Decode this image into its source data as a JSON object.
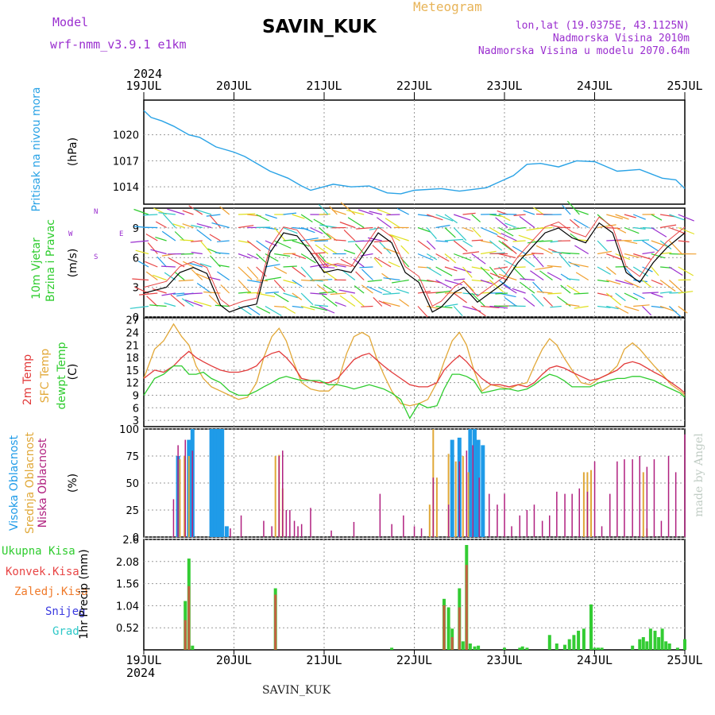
{
  "header": {
    "model_label": "Model",
    "model_name": "wrf-nmm_v3.9.1 e1km",
    "station": "SAVIN_KUK",
    "product": "Meteogram",
    "lonlat": "lon,lat (19.0375E, 43.1125N)",
    "elevation": "Nadmorska Visina 2010m",
    "model_elevation": "Nadmorska Visina u modelu 2070.64m",
    "year": "2024",
    "footer_station": "SAVIN_KUK",
    "credit": "made by Angel"
  },
  "colors": {
    "pressure": "#2aa3e6",
    "temp2m": "#e23a3a",
    "sfc_temp": "#e2a838",
    "dewpt": "#2ecc2e",
    "high_cloud": "#1f9be8",
    "mid_cloud": "#e0a838",
    "low_cloud": "#b0207f",
    "total_precip": "#33cc33",
    "conv_precip": "#e84545",
    "frz_precip": "#f07a2a",
    "snow": "#3a3ae0",
    "hail": "#2ec8c8",
    "wind_axis_label": "#9a2ecf",
    "grid": "#9a9a9a"
  },
  "panels": {
    "pressure": {
      "labels": [
        "Pritisak na nivou mora",
        "(hPa)"
      ]
    },
    "wind": {
      "labels": [
        "10m Vjetar",
        "Brzina i Pravac",
        "(m/s)"
      ],
      "compass": [
        "N",
        "W",
        "E",
        "S"
      ]
    },
    "temp": {
      "labels": [
        "2m Temp",
        "SFC Temp",
        "dewpt Temp",
        "(C)"
      ]
    },
    "cloud": {
      "labels": [
        "Visoka Oblacnost",
        "Srednja Oblacnost",
        "Niska Oblacnost",
        "(%)"
      ]
    },
    "precip": {
      "labels": [
        "Ukupna Kisa",
        "Konvek.Kisa",
        "Zaledj.Kisa",
        "Snijeg",
        "Grad"
      ],
      "ylabel": "1hr Precip (mm)"
    }
  },
  "chart_data": {
    "type": "line",
    "x_axis": {
      "start": "2024-07-19",
      "end": "2024-07-25",
      "tick_labels": [
        "19JUL",
        "20JUL",
        "21JUL",
        "22JUL",
        "23JUL",
        "24JUL",
        "25JUL"
      ]
    },
    "pressure": {
      "ylabel": "(hPa)",
      "ylim": [
        1012,
        1024
      ],
      "yticks": [
        1014,
        1017,
        1020
      ],
      "x_days": [
        0,
        0.08,
        0.2,
        0.33,
        0.5,
        0.62,
        0.8,
        1.0,
        1.12,
        1.4,
        1.6,
        1.75,
        1.85,
        2.1,
        2.3,
        2.5,
        2.7,
        2.85,
        3.0,
        3.3,
        3.5,
        3.8,
        3.95,
        4.1,
        4.25,
        4.4,
        4.6,
        4.8,
        5.0,
        5.25,
        5.5,
        5.75,
        5.9,
        6.0
      ],
      "values": [
        1022.8,
        1022.0,
        1021.6,
        1021.0,
        1020.0,
        1019.7,
        1018.6,
        1018.0,
        1017.5,
        1015.8,
        1015.0,
        1014.1,
        1013.6,
        1014.3,
        1014.0,
        1014.1,
        1013.3,
        1013.2,
        1013.6,
        1013.8,
        1013.5,
        1013.9,
        1014.6,
        1015.3,
        1016.6,
        1016.7,
        1016.3,
        1017.0,
        1016.9,
        1015.8,
        1016.0,
        1015.0,
        1014.8,
        1013.8
      ]
    },
    "wind": {
      "ylabel": "(m/s)",
      "ylim": [
        0,
        11
      ],
      "yticks": [
        0,
        3,
        6,
        9
      ],
      "x_days": [
        0,
        0.25,
        0.4,
        0.55,
        0.7,
        0.85,
        0.95,
        1.1,
        1.25,
        1.4,
        1.55,
        1.7,
        1.85,
        2.0,
        2.15,
        2.3,
        2.45,
        2.6,
        2.75,
        2.9,
        3.05,
        3.2,
        3.3,
        3.45,
        3.55,
        3.7,
        3.85,
        4.0,
        4.15,
        4.3,
        4.45,
        4.6,
        4.75,
        4.9,
        5.05,
        5.2,
        5.35,
        5.5,
        5.65,
        5.8,
        6.0
      ],
      "values": [
        2.4,
        3.0,
        4.5,
        5.0,
        4.4,
        1.2,
        0.5,
        1.0,
        1.3,
        6.5,
        8.5,
        8.2,
        6.5,
        4.5,
        4.8,
        4.5,
        6.5,
        8.5,
        7.5,
        4.5,
        3.5,
        0.5,
        1.0,
        2.5,
        3.0,
        1.5,
        2.5,
        3.5,
        5.5,
        7.0,
        8.5,
        9.0,
        8.0,
        7.5,
        9.5,
        8.5,
        4.5,
        3.5,
        5.5,
        7.0,
        8.5
      ]
    },
    "temperature": {
      "ylabel": "(C)",
      "ylim": [
        1.5,
        27.5
      ],
      "yticks": [
        3,
        6,
        9,
        12,
        15,
        18,
        21,
        24,
        27
      ],
      "x_days": [
        0,
        0.12,
        0.22,
        0.33,
        0.42,
        0.5,
        0.58,
        0.66,
        0.75,
        0.85,
        0.95,
        1.05,
        1.15,
        1.25,
        1.33,
        1.42,
        1.5,
        1.58,
        1.66,
        1.75,
        1.85,
        1.95,
        2.05,
        2.15,
        2.25,
        2.33,
        2.42,
        2.5,
        2.58,
        2.66,
        2.75,
        2.85,
        2.95,
        3.05,
        3.15,
        3.25,
        3.33,
        3.42,
        3.5,
        3.58,
        3.66,
        3.75,
        3.85,
        3.95,
        4.05,
        4.15,
        4.25,
        4.33,
        4.42,
        4.5,
        4.58,
        4.66,
        4.75,
        4.85,
        4.95,
        5.05,
        5.15,
        5.25,
        5.33,
        5.42,
        5.5,
        5.58,
        5.66,
        5.75,
        5.85,
        5.95,
        6.0
      ],
      "series": [
        {
          "name": "2m Temp",
          "values": [
            13.0,
            15.0,
            14.5,
            16.0,
            18.0,
            19.5,
            18.0,
            17.0,
            16.0,
            15.0,
            14.5,
            14.5,
            15.0,
            16.0,
            18.0,
            19.0,
            19.5,
            18.0,
            16.0,
            13.0,
            12.5,
            12.0,
            12.0,
            13.0,
            15.5,
            17.5,
            18.5,
            19.0,
            17.5,
            16.0,
            14.5,
            13.0,
            11.5,
            11.0,
            11.0,
            12.0,
            15.0,
            17.0,
            18.5,
            17.0,
            15.0,
            13.0,
            11.5,
            11.5,
            11.0,
            11.5,
            11.0,
            12.0,
            14.0,
            15.5,
            16.0,
            15.5,
            14.5,
            13.5,
            12.5,
            13.0,
            14.0,
            15.0,
            16.5,
            17.0,
            16.5,
            15.5,
            14.5,
            13.5,
            12.0,
            10.5,
            9.5
          ]
        },
        {
          "name": "SFC Temp",
          "values": [
            13.0,
            20.0,
            22.0,
            26.0,
            23.0,
            21.0,
            16.0,
            13.0,
            11.0,
            10.0,
            9.0,
            8.0,
            8.5,
            12.0,
            18.0,
            23.0,
            25.0,
            22.0,
            17.0,
            12.0,
            10.5,
            10.0,
            10.0,
            12.0,
            19.0,
            23.0,
            24.0,
            23.0,
            18.0,
            14.0,
            10.0,
            7.0,
            6.5,
            7.0,
            8.0,
            12.0,
            17.0,
            22.0,
            24.0,
            21.0,
            15.0,
            10.0,
            11.5,
            11.0,
            10.5,
            11.5,
            12.0,
            16.0,
            20.0,
            22.5,
            21.0,
            18.0,
            15.0,
            12.0,
            11.5,
            13.0,
            14.0,
            16.0,
            20.0,
            21.5,
            20.0,
            18.0,
            16.0,
            14.0,
            11.5,
            10.0,
            9.0
          ]
        },
        {
          "name": "dewpt Temp",
          "values": [
            9.0,
            13.0,
            14.0,
            16.0,
            16.0,
            14.0,
            14.0,
            14.5,
            13.0,
            12.0,
            10.0,
            9.0,
            9.0,
            10.0,
            11.0,
            12.0,
            13.0,
            13.5,
            13.0,
            12.5,
            12.5,
            12.5,
            11.5,
            11.5,
            11.0,
            10.5,
            11.0,
            11.5,
            11.0,
            10.5,
            9.5,
            8.0,
            3.5,
            7.0,
            6.0,
            6.5,
            10.5,
            14.0,
            14.0,
            13.5,
            12.5,
            9.5,
            10.0,
            10.5,
            10.5,
            10.0,
            10.5,
            11.5,
            13.0,
            14.0,
            13.5,
            12.5,
            11.0,
            11.0,
            11.0,
            12.0,
            12.5,
            13.0,
            13.0,
            13.5,
            13.5,
            13.0,
            12.5,
            11.5,
            10.5,
            9.5,
            8.5
          ]
        }
      ]
    },
    "cloud": {
      "ylabel": "(%)",
      "ylim": [
        0,
        100
      ],
      "yticks": [
        0,
        25,
        50,
        75,
        100
      ],
      "series": [
        {
          "name": "Visoka Oblacnost",
          "x_days": [
            0.38,
            0.5,
            0.54,
            0.75,
            0.79,
            0.83,
            0.87,
            0.92,
            3.42,
            3.5,
            3.62,
            3.67,
            3.71,
            3.76
          ],
          "values": [
            75,
            90,
            100,
            100,
            100,
            100,
            100,
            10,
            90,
            92,
            100,
            100,
            90,
            85
          ]
        },
        {
          "name": "Srednja Oblacnost",
          "x_days": [
            0.4,
            0.45,
            0.5,
            1.46,
            1.5,
            1.54,
            3.17,
            3.21,
            3.25,
            3.38,
            3.46,
            3.54,
            3.6,
            4.88,
            4.92,
            4.96,
            5.54,
            5.58
          ],
          "values": [
            72,
            75,
            75,
            75,
            76,
            45,
            30,
            100,
            55,
            77,
            70,
            75,
            60,
            60,
            60,
            62,
            60,
            8
          ]
        },
        {
          "name": "Niska Oblacnost",
          "x_days": [
            0.33,
            0.38,
            0.46,
            0.54,
            0.96,
            1.08,
            1.33,
            1.42,
            1.5,
            1.54,
            1.58,
            1.62,
            1.67,
            1.71,
            1.75,
            1.85,
            2.08,
            2.33,
            2.62,
            2.75,
            2.88,
            3.0,
            3.08,
            3.21,
            3.38,
            3.5,
            3.58,
            3.65,
            3.72,
            3.83,
            3.92,
            4.0,
            4.08,
            4.17,
            4.25,
            4.33,
            4.42,
            4.5,
            4.58,
            4.67,
            4.75,
            4.83,
            4.92,
            5.0,
            5.08,
            5.17,
            5.25,
            5.33,
            5.42,
            5.5,
            5.58,
            5.66,
            5.74,
            5.82,
            5.9,
            6.0
          ],
          "values": [
            35,
            85,
            90,
            80,
            8,
            20,
            15,
            10,
            75,
            80,
            25,
            25,
            15,
            10,
            12,
            27,
            6,
            14,
            40,
            12,
            20,
            10,
            8,
            55,
            30,
            70,
            80,
            85,
            55,
            40,
            30,
            40,
            10,
            20,
            25,
            30,
            15,
            20,
            42,
            40,
            40,
            45,
            42,
            70,
            10,
            40,
            70,
            72,
            72,
            75,
            65,
            72,
            15,
            75,
            60,
            95
          ]
        }
      ]
    },
    "precip": {
      "ylabel": "1hr Precip (mm)",
      "ylim": [
        0,
        2.6
      ],
      "yticks": [
        0.52,
        1.04,
        1.56,
        2.08,
        2.6
      ],
      "series": [
        {
          "name": "Ukupna Kisa",
          "x_days": [
            0.46,
            0.5,
            0.54,
            1.46,
            2.75,
            3.33,
            3.38,
            3.42,
            3.5,
            3.54,
            3.58,
            3.62,
            3.67,
            3.71,
            4.0,
            4.17,
            4.2,
            4.25,
            4.5,
            4.58,
            4.67,
            4.72,
            4.77,
            4.82,
            4.88,
            4.96,
            5.0,
            5.04,
            5.08,
            5.42,
            5.5,
            5.54,
            5.58,
            5.62,
            5.67,
            5.71,
            5.75,
            5.79,
            5.83,
            5.92,
            6.0
          ],
          "values": [
            1.15,
            2.15,
            0.1,
            1.45,
            0.05,
            1.2,
            1.0,
            0.5,
            1.45,
            0.2,
            2.47,
            0.15,
            0.08,
            0.1,
            0.05,
            0.05,
            0.08,
            0.05,
            0.35,
            0.15,
            0.12,
            0.25,
            0.35,
            0.45,
            0.5,
            1.07,
            0.05,
            0.05,
            0.05,
            0.1,
            0.25,
            0.3,
            0.2,
            0.5,
            0.45,
            0.3,
            0.5,
            0.2,
            0.15,
            0.05,
            0.25
          ]
        },
        {
          "name": "Konvek.Kisa",
          "x_days": [
            0.46,
            0.5,
            1.46,
            3.33,
            3.42,
            3.5,
            3.58
          ],
          "values": [
            0.7,
            1.5,
            1.3,
            1.05,
            0.3,
            1.0,
            2.0
          ]
        },
        {
          "name": "Zaledj.Kisa",
          "x_days": [],
          "values": []
        },
        {
          "name": "Snijeg",
          "x_days": [],
          "values": []
        },
        {
          "name": "Grad",
          "x_days": [],
          "values": []
        }
      ]
    }
  }
}
